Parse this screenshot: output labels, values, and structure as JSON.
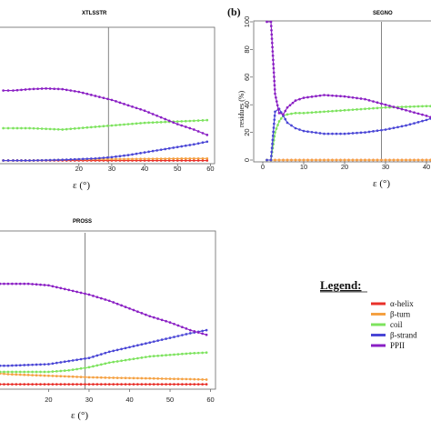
{
  "colors": {
    "alpha": "#e8302a",
    "beta_turn": "#f5a142",
    "coil": "#7de35e",
    "beta_strand": "#4a46d6",
    "ppii": "#8a1fc4"
  },
  "chart_data": [
    {
      "type": "line",
      "title": "XTLSSTR",
      "panel_label": "",
      "xlabel": "ε (°)",
      "ylabel": "",
      "xlim": [
        -4,
        61
      ],
      "ylim": [
        0,
        100
      ],
      "xticks": [
        20,
        30,
        40,
        50,
        60
      ],
      "yticks": [],
      "vline": 29,
      "series": [
        {
          "name": "α-helix",
          "color": "#e8302a",
          "x": [
            -3,
            0,
            5,
            10,
            15,
            20,
            25,
            30,
            35,
            40,
            45,
            50,
            55,
            59
          ],
          "y": [
            1,
            1,
            1,
            1,
            1,
            1,
            1,
            1,
            1,
            1,
            1,
            1,
            1,
            1
          ]
        },
        {
          "name": "β-turn",
          "color": "#f5a142",
          "x": [
            -3,
            0,
            5,
            10,
            15,
            20,
            25,
            30,
            35,
            40,
            45,
            50,
            55,
            59
          ],
          "y": [
            1,
            1,
            1,
            1.2,
            1.5,
            1.8,
            2,
            2,
            2.1,
            2.2,
            2.3,
            2.4,
            2.5,
            2.5
          ]
        },
        {
          "name": "coil",
          "color": "#7de35e",
          "x": [
            -3,
            0,
            5,
            10,
            15,
            20,
            25,
            30,
            35,
            40,
            45,
            50,
            55,
            59
          ],
          "y": [
            25,
            25,
            25,
            24.5,
            24,
            25,
            26,
            27,
            28,
            29,
            29.5,
            30,
            30.5,
            31
          ]
        },
        {
          "name": "β-strand",
          "color": "#4a46d6",
          "x": [
            -3,
            0,
            5,
            10,
            15,
            20,
            25,
            30,
            35,
            40,
            45,
            50,
            55,
            59
          ],
          "y": [
            1,
            1,
            1,
            1.2,
            1.5,
            2,
            2.5,
            3.5,
            5,
            7,
            9,
            11,
            13,
            15
          ]
        },
        {
          "name": "PPII",
          "color": "#8a1fc4",
          "x": [
            -3,
            0,
            5,
            10,
            15,
            20,
            25,
            30,
            35,
            40,
            45,
            50,
            55,
            59
          ],
          "y": [
            53,
            53,
            54,
            54.5,
            54,
            52,
            49,
            46,
            42,
            38,
            33,
            28,
            24,
            20
          ]
        }
      ]
    },
    {
      "type": "line",
      "title": "SEGNO",
      "panel_label": "(b)",
      "xlabel": "ε (°)",
      "ylabel": "residues (%)",
      "xlim": [
        -2,
        42
      ],
      "ylim": [
        0,
        100
      ],
      "xticks": [
        0,
        10,
        20,
        30,
        40
      ],
      "yticks": [
        0,
        20,
        40,
        60,
        80,
        100
      ],
      "vline": 29,
      "series": [
        {
          "name": "α-helix",
          "color": "#e8302a",
          "x": [
            1,
            2,
            3,
            4,
            5,
            6,
            8,
            10,
            15,
            20,
            25,
            30,
            35,
            40,
            42
          ],
          "y": [
            0,
            0,
            0,
            0,
            0,
            0,
            0,
            0,
            0,
            0,
            0,
            0,
            0,
            0,
            0
          ]
        },
        {
          "name": "β-turn",
          "color": "#f5a142",
          "x": [
            1,
            2,
            3,
            4,
            5,
            6,
            8,
            10,
            15,
            20,
            25,
            30,
            35,
            40,
            42
          ],
          "y": [
            0,
            0,
            0,
            0,
            0,
            0,
            0,
            0,
            0,
            0,
            0,
            0,
            0,
            0,
            0
          ]
        },
        {
          "name": "coil",
          "color": "#7de35e",
          "x": [
            1,
            2,
            3,
            4,
            5,
            6,
            8,
            10,
            15,
            20,
            25,
            30,
            35,
            40,
            42
          ],
          "y": [
            0,
            0,
            20,
            28,
            32,
            33,
            34,
            34,
            35,
            36,
            37,
            38,
            38.5,
            39,
            39
          ]
        },
        {
          "name": "β-strand",
          "color": "#4a46d6",
          "x": [
            1,
            2,
            3,
            4,
            5,
            6,
            8,
            10,
            15,
            20,
            25,
            30,
            35,
            40,
            42
          ],
          "y": [
            0,
            0,
            35,
            37,
            32,
            27,
            23,
            21,
            19,
            19,
            20,
            22,
            25,
            29,
            31
          ]
        },
        {
          "name": "PPII",
          "color": "#8a1fc4",
          "x": [
            1,
            2,
            3,
            4,
            5,
            6,
            8,
            10,
            15,
            20,
            25,
            30,
            35,
            40,
            42
          ],
          "y": [
            100,
            100,
            48,
            34,
            33,
            38,
            43,
            45,
            47,
            46,
            44,
            40,
            36,
            32,
            30
          ]
        }
      ]
    },
    {
      "type": "line",
      "title": "PROSS",
      "panel_label": "",
      "xlabel": "ε (°)",
      "ylabel": "",
      "xlim": [
        8,
        61
      ],
      "ylim": [
        0,
        100
      ],
      "xticks": [
        20,
        30,
        40,
        50,
        60
      ],
      "yticks": [],
      "vline": 29,
      "series": [
        {
          "name": "α-helix",
          "color": "#e8302a",
          "x": [
            8,
            10,
            15,
            20,
            25,
            30,
            35,
            40,
            45,
            50,
            55,
            59
          ],
          "y": [
            2,
            2,
            2,
            2,
            2,
            2,
            2,
            2,
            2,
            2,
            2,
            2
          ]
        },
        {
          "name": "β-turn",
          "color": "#f5a142",
          "x": [
            8,
            10,
            15,
            20,
            25,
            30,
            35,
            40,
            45,
            50,
            55,
            59
          ],
          "y": [
            9,
            8.5,
            8,
            7.5,
            7,
            6.5,
            6.2,
            6,
            5.8,
            5.5,
            5.3,
            5
          ]
        },
        {
          "name": "coil",
          "color": "#7de35e",
          "x": [
            8,
            10,
            15,
            20,
            25,
            30,
            35,
            40,
            45,
            50,
            55,
            59
          ],
          "y": [
            10,
            10,
            10,
            10,
            11,
            13,
            16,
            18,
            20,
            21,
            22,
            22.5
          ]
        },
        {
          "name": "β-strand",
          "color": "#4a46d6",
          "x": [
            8,
            10,
            15,
            20,
            25,
            30,
            35,
            40,
            45,
            50,
            55,
            59
          ],
          "y": [
            14,
            14,
            14.5,
            15,
            17,
            19,
            23,
            26,
            29,
            32,
            35,
            37
          ]
        },
        {
          "name": "PPII",
          "color": "#8a1fc4",
          "x": [
            8,
            10,
            15,
            20,
            25,
            30,
            35,
            40,
            45,
            50,
            55,
            59
          ],
          "y": [
            67,
            67,
            67,
            66,
            63,
            60,
            56,
            51,
            46,
            42,
            37,
            34
          ]
        }
      ]
    }
  ],
  "legend": {
    "title": "Legend:",
    "items": [
      {
        "label": "α-helix",
        "color": "#e8302a"
      },
      {
        "label": "β-turn",
        "color": "#f5a142"
      },
      {
        "label": "coil",
        "color": "#7de35e"
      },
      {
        "label": "β-strand",
        "color": "#4a46d6"
      },
      {
        "label": "PPII",
        "color": "#8a1fc4"
      }
    ]
  }
}
